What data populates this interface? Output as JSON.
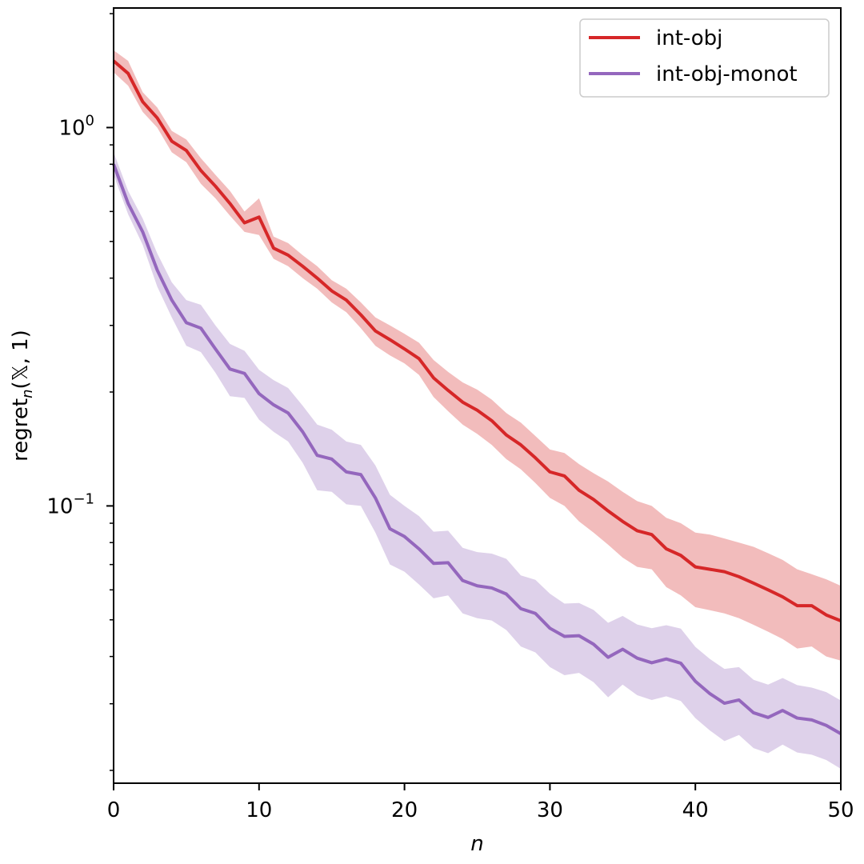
{
  "chart_data": {
    "type": "line",
    "xlabel": "n",
    "ylabel_main": "regret",
    "ylabel_sub": "n",
    "ylabel_args": "(𝕏, 1)",
    "yscale": "log",
    "xlim": [
      0,
      50
    ],
    "ylim": [
      0.0185,
      2.07
    ],
    "x_ticks": [
      0,
      10,
      20,
      30,
      40,
      50
    ],
    "x_tick_labels": [
      "0",
      "10",
      "20",
      "30",
      "40",
      "50"
    ],
    "y_tick_labels": [
      {
        "value": 1.0,
        "base": "10",
        "exp": "0"
      },
      {
        "value": 0.1,
        "base": "10",
        "exp": "−1"
      }
    ],
    "legend": {
      "position": "top-right",
      "entries": [
        "int-obj",
        "int-obj-monot"
      ]
    },
    "series": [
      {
        "name": "int-obj",
        "color": "#d62728",
        "band_color": "#f2bcbc",
        "x": [
          0,
          1,
          2,
          3,
          4,
          5,
          6,
          7,
          8,
          9,
          10,
          11,
          12,
          13,
          14,
          15,
          16,
          17,
          18,
          19,
          20,
          21,
          22,
          23,
          24,
          25,
          26,
          27,
          28,
          29,
          30,
          31,
          32,
          33,
          34,
          35,
          36,
          37,
          38,
          39,
          40,
          41,
          42,
          43,
          44,
          45,
          46,
          47,
          48,
          49,
          50
        ],
        "values": [
          1.5,
          1.39,
          1.17,
          1.06,
          0.92,
          0.87,
          0.77,
          0.7,
          0.63,
          0.56,
          0.58,
          0.48,
          0.46,
          0.43,
          0.4,
          0.37,
          0.35,
          0.32,
          0.29,
          0.275,
          0.26,
          0.245,
          0.218,
          0.202,
          0.188,
          0.179,
          0.168,
          0.154,
          0.145,
          0.134,
          0.123,
          0.12,
          0.11,
          0.104,
          0.097,
          0.091,
          0.086,
          0.084,
          0.077,
          0.074,
          0.069,
          0.068,
          0.067,
          0.065,
          0.0625,
          0.06,
          0.0575,
          0.0545,
          0.0545,
          0.0515,
          0.0497
        ],
        "lower": [
          1.4,
          1.29,
          1.1,
          1.0,
          0.86,
          0.81,
          0.71,
          0.65,
          0.585,
          0.53,
          0.52,
          0.45,
          0.43,
          0.4,
          0.375,
          0.345,
          0.325,
          0.295,
          0.265,
          0.25,
          0.238,
          0.222,
          0.194,
          0.178,
          0.164,
          0.155,
          0.145,
          0.133,
          0.125,
          0.115,
          0.105,
          0.1,
          0.091,
          0.085,
          0.079,
          0.073,
          0.069,
          0.068,
          0.061,
          0.058,
          0.054,
          0.053,
          0.052,
          0.0505,
          0.0485,
          0.0465,
          0.0445,
          0.042,
          0.0425,
          0.04,
          0.039
        ],
        "upper": [
          1.6,
          1.5,
          1.24,
          1.13,
          0.98,
          0.93,
          0.83,
          0.75,
          0.68,
          0.6,
          0.65,
          0.515,
          0.495,
          0.46,
          0.43,
          0.395,
          0.375,
          0.345,
          0.315,
          0.3,
          0.285,
          0.27,
          0.243,
          0.226,
          0.212,
          0.203,
          0.191,
          0.176,
          0.166,
          0.153,
          0.141,
          0.138,
          0.129,
          0.122,
          0.116,
          0.109,
          0.103,
          0.1,
          0.093,
          0.09,
          0.085,
          0.084,
          0.082,
          0.08,
          0.078,
          0.075,
          0.072,
          0.068,
          0.066,
          0.064,
          0.0615
        ]
      },
      {
        "name": "int-obj-monot",
        "color": "#9467bd",
        "band_color": "#ded1ea",
        "x": [
          0,
          1,
          2,
          3,
          4,
          5,
          6,
          7,
          8,
          9,
          10,
          11,
          12,
          13,
          14,
          15,
          16,
          17,
          18,
          19,
          20,
          21,
          22,
          23,
          24,
          25,
          26,
          27,
          28,
          29,
          30,
          31,
          32,
          33,
          34,
          35,
          36,
          37,
          38,
          39,
          40,
          41,
          42,
          43,
          44,
          45,
          46,
          47,
          48,
          49,
          50
        ],
        "values": [
          0.8,
          0.63,
          0.53,
          0.42,
          0.35,
          0.305,
          0.295,
          0.26,
          0.23,
          0.224,
          0.198,
          0.185,
          0.176,
          0.157,
          0.136,
          0.133,
          0.123,
          0.121,
          0.105,
          0.087,
          0.083,
          0.077,
          0.0705,
          0.0708,
          0.0635,
          0.0615,
          0.0607,
          0.0585,
          0.0535,
          0.052,
          0.0475,
          0.0452,
          0.0454,
          0.0431,
          0.0398,
          0.0418,
          0.0396,
          0.0385,
          0.0394,
          0.0384,
          0.0344,
          0.0319,
          0.0301,
          0.0307,
          0.0284,
          0.0276,
          0.0288,
          0.0275,
          0.0272,
          0.0263,
          0.025
        ],
        "lower": [
          0.75,
          0.59,
          0.49,
          0.38,
          0.315,
          0.265,
          0.255,
          0.225,
          0.195,
          0.193,
          0.169,
          0.157,
          0.148,
          0.13,
          0.11,
          0.109,
          0.101,
          0.1,
          0.085,
          0.07,
          0.067,
          0.062,
          0.057,
          0.058,
          0.052,
          0.0505,
          0.0498,
          0.047,
          0.0425,
          0.041,
          0.0375,
          0.0357,
          0.0362,
          0.0342,
          0.0312,
          0.0337,
          0.0316,
          0.0307,
          0.0314,
          0.0305,
          0.0275,
          0.0255,
          0.0239,
          0.0248,
          0.0229,
          0.0222,
          0.0234,
          0.0223,
          0.022,
          0.0213,
          0.0202
        ],
        "upper": [
          0.86,
          0.68,
          0.575,
          0.465,
          0.39,
          0.35,
          0.34,
          0.3,
          0.268,
          0.257,
          0.229,
          0.215,
          0.205,
          0.184,
          0.164,
          0.159,
          0.148,
          0.145,
          0.128,
          0.107,
          0.1,
          0.094,
          0.0855,
          0.086,
          0.0775,
          0.0755,
          0.0748,
          0.0725,
          0.0655,
          0.0638,
          0.0586,
          0.0552,
          0.0554,
          0.0531,
          0.0491,
          0.0512,
          0.0486,
          0.0475,
          0.0484,
          0.0474,
          0.0424,
          0.0394,
          0.0371,
          0.0375,
          0.0347,
          0.0337,
          0.0351,
          0.0336,
          0.0331,
          0.0322,
          0.0306
        ]
      }
    ]
  }
}
